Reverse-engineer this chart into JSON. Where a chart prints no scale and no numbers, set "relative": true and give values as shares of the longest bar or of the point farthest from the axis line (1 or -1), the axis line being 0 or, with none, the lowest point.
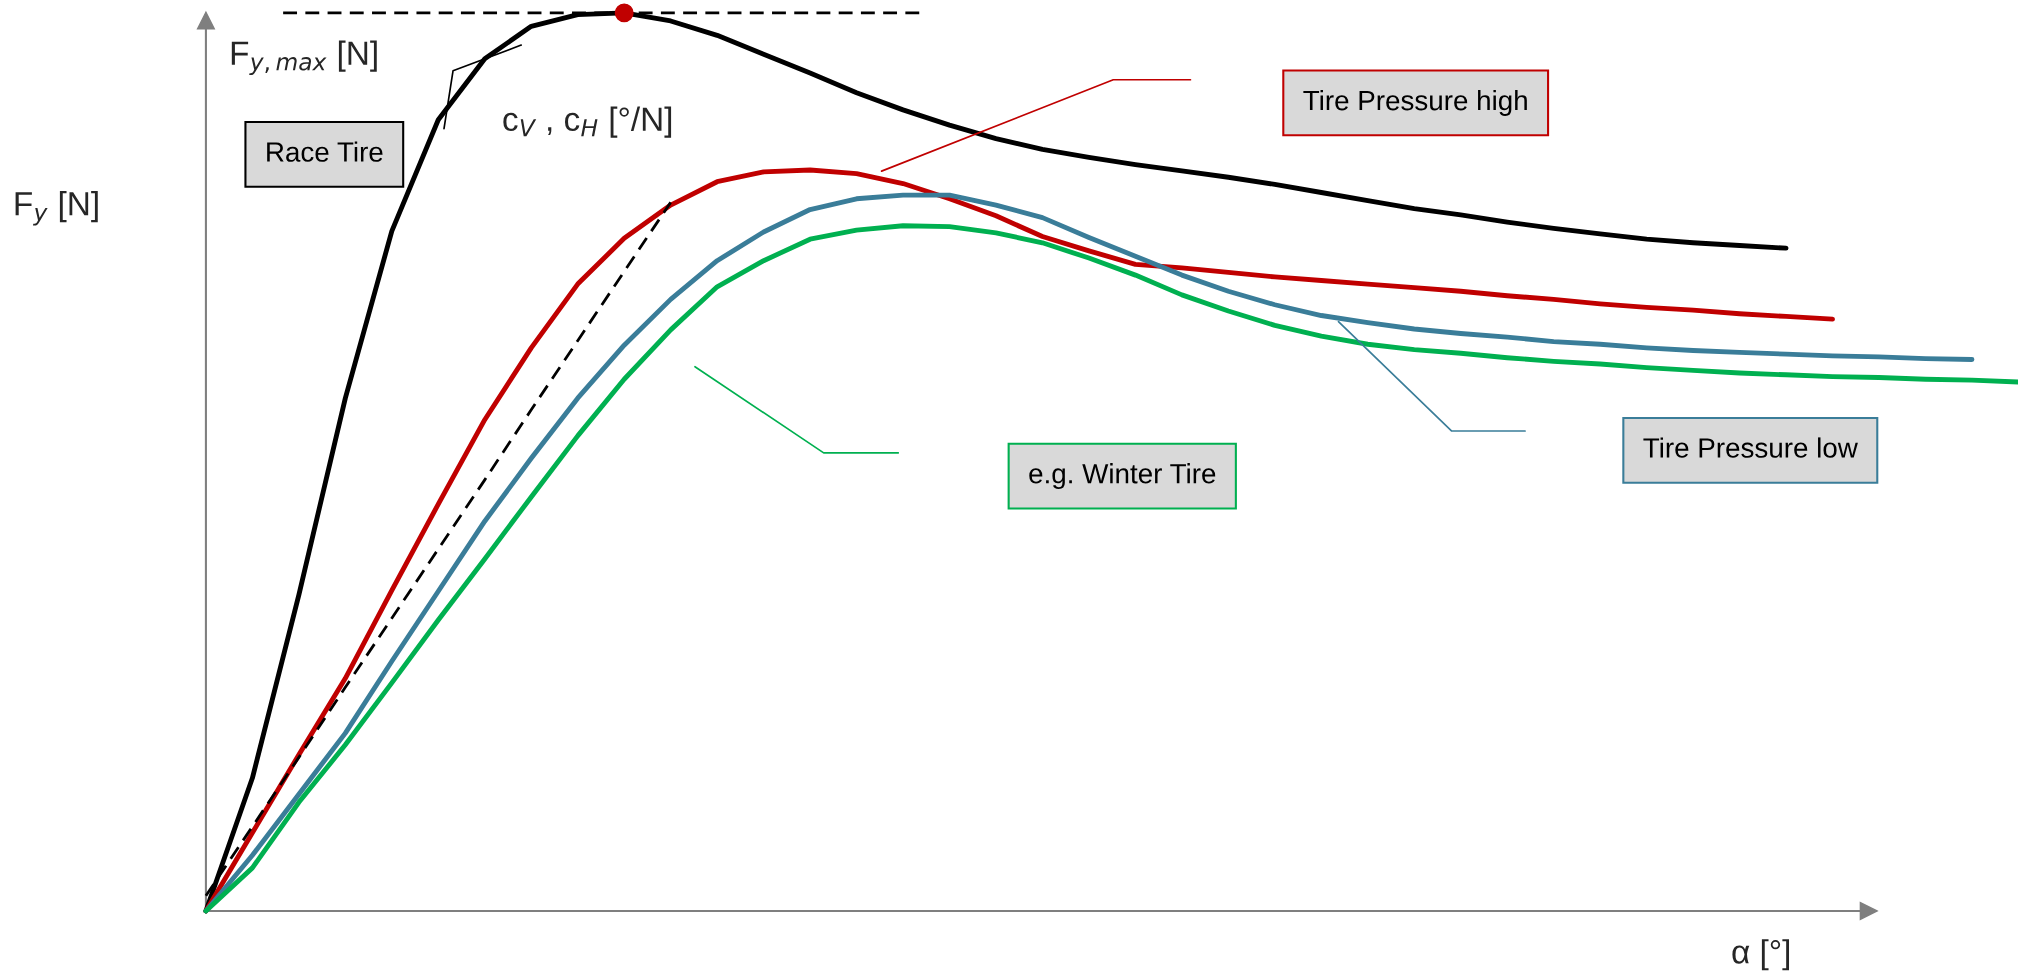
{
  "chart_data": {
    "type": "line",
    "relative": true,
    "xlabel": "α [°]",
    "ylabel": "F$_{y}$ [N]",
    "legend": false,
    "grid": false,
    "annotations": [
      "c$_{V}$ , c$_{H}$ [°/N]"
    ],
    "ref_lines": [
      {
        "axis": "y",
        "value": 1,
        "label": "F$_{y,max}$ [N]",
        "color": "#000000",
        "line_style": "dashed"
      }
    ],
    "categories": [
      null,
      null,
      null,
      null,
      null,
      null,
      null,
      null,
      null,
      null,
      null,
      null,
      null,
      null,
      null,
      null,
      null,
      null,
      null,
      null,
      null,
      null,
      null,
      null,
      null,
      null,
      null,
      null,
      null,
      null,
      null,
      null,
      null,
      null,
      null,
      null,
      null,
      null,
      null,
      null
    ],
    "series": [
      {
        "name": "Race Tire",
        "color": "#000000",
        "values": [
          0,
          0.148,
          0.352,
          0.571,
          0.757,
          0.881,
          0.949,
          0.985,
          0.998,
          1.0,
          0.991,
          0.975,
          0.954,
          0.933,
          0.911,
          0.892,
          0.875,
          0.86,
          0.848,
          0.839,
          0.831,
          0.824,
          0.817,
          0.809,
          0.8,
          0.791,
          0.782,
          0.775,
          0.767,
          0.76,
          0.754,
          0.748,
          0.744,
          0.741,
          0.738,
          null,
          null,
          null,
          null,
          null
        ]
      },
      {
        "name": "Tire Pressure high",
        "color": "#c00000",
        "values": [
          0,
          0.087,
          0.174,
          0.259,
          0.357,
          0.453,
          0.547,
          0.627,
          0.698,
          0.749,
          0.786,
          0.812,
          0.823,
          0.825,
          0.821,
          0.81,
          0.793,
          0.774,
          0.751,
          0.735,
          0.72,
          0.716,
          0.711,
          0.706,
          0.702,
          0.698,
          0.694,
          0.69,
          0.685,
          0.681,
          0.676,
          0.672,
          0.669,
          0.665,
          0.662,
          0.659,
          null,
          null,
          null,
          null
        ]
      },
      {
        "name": "Tire Pressure low",
        "color": "#3a7d99",
        "values": [
          0,
          0.062,
          0.13,
          0.198,
          0.278,
          0.356,
          0.434,
          0.504,
          0.571,
          0.63,
          0.681,
          0.724,
          0.756,
          0.781,
          0.793,
          0.797,
          0.797,
          0.786,
          0.772,
          0.75,
          0.729,
          0.708,
          0.69,
          0.675,
          0.663,
          0.655,
          0.648,
          0.643,
          0.639,
          0.634,
          0.631,
          0.627,
          0.624,
          0.622,
          0.62,
          0.618,
          0.617,
          0.615,
          0.614,
          null
        ]
      },
      {
        "name": "e.g. Winter Tire",
        "color": "#00b050",
        "values": [
          0,
          0.048,
          0.121,
          0.185,
          0.254,
          0.324,
          0.392,
          0.461,
          0.529,
          0.592,
          0.647,
          0.695,
          0.724,
          0.748,
          0.758,
          0.763,
          0.762,
          0.755,
          0.744,
          0.727,
          0.708,
          0.686,
          0.668,
          0.652,
          0.64,
          0.631,
          0.625,
          0.621,
          0.616,
          0.612,
          0.609,
          0.605,
          0.602,
          0.599,
          0.597,
          0.595,
          0.594,
          0.592,
          0.591,
          0.589
        ]
      },
      {
        "color": "#000000",
        "line_style": "dashed",
        "values": [
          0.017,
          0.094,
          0.171,
          0.249,
          0.326,
          0.403,
          0.48,
          0.558,
          0.635,
          0.712,
          0.789,
          null,
          null,
          null,
          null,
          null,
          null,
          null,
          null,
          null,
          null,
          null,
          null,
          null,
          null,
          null,
          null,
          null,
          null,
          null,
          null,
          null,
          null,
          null,
          null,
          null,
          null,
          null,
          null,
          null
        ]
      }
    ]
  }
}
